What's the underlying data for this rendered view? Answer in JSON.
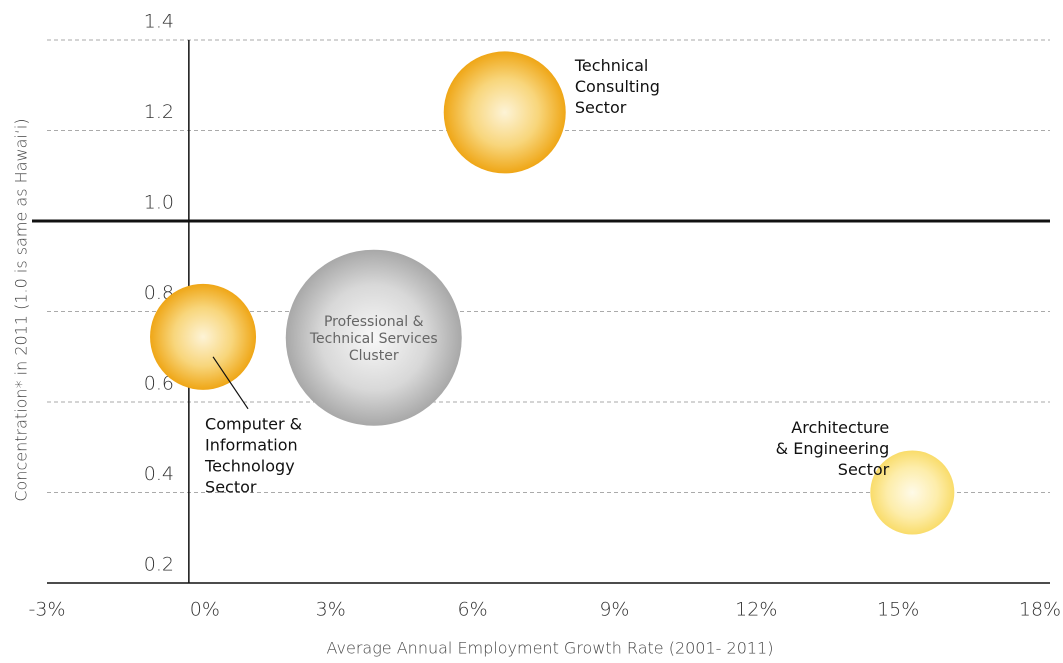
{
  "chart_data": {
    "type": "bubble",
    "xlabel": "Average Annual Employment Growth Rate (2001- 2011)",
    "ylabel": "Concentration* in 2011 (1.0 is same as Hawai‘i)",
    "xlim": [
      -3,
      18
    ],
    "xticks": [
      {
        "value": -3,
        "label": "-3%"
      },
      {
        "value": 0,
        "label": "0%"
      },
      {
        "value": 3,
        "label": "3%"
      },
      {
        "value": 6,
        "label": "6%"
      },
      {
        "value": 9,
        "label": "9%"
      },
      {
        "value": 12,
        "label": "12%"
      },
      {
        "value": 15,
        "label": "15%"
      },
      {
        "value": 18,
        "label": "18%"
      }
    ],
    "ylim": [
      0.2,
      1.4
    ],
    "yticks": [
      0.2,
      0.4,
      0.6,
      {
        "value": 1.0,
        "label": "1.0"
      },
      0.8,
      1.2,
      1.4
    ],
    "grid": true,
    "series": [
      {
        "name": [
          "Technical",
          "Consulting",
          "Sector"
        ],
        "color": "#f0a81a",
        "x": [
          6.68
        ],
        "values": [
          1.24
        ],
        "sizes": [
          61
        ]
      },
      {
        "name": [
          "Computer &",
          "Information",
          "Technology",
          "Sector"
        ],
        "color": "#f0a81a",
        "x": [
          0.3
        ],
        "values": [
          0.744
        ],
        "sizes": [
          53
        ]
      },
      {
        "name": [
          "Professional &",
          "Technical Services",
          "Cluster"
        ],
        "color": "#a8a8a8",
        "x": [
          3.91
        ],
        "values": [
          0.742
        ],
        "sizes": [
          88
        ]
      },
      {
        "name": [
          "Architecture",
          "& Engineering",
          "Sector"
        ],
        "color": "#f9dc6a",
        "x": [
          15.3
        ],
        "values": [
          0.4
        ],
        "sizes": [
          42
        ]
      }
    ]
  }
}
